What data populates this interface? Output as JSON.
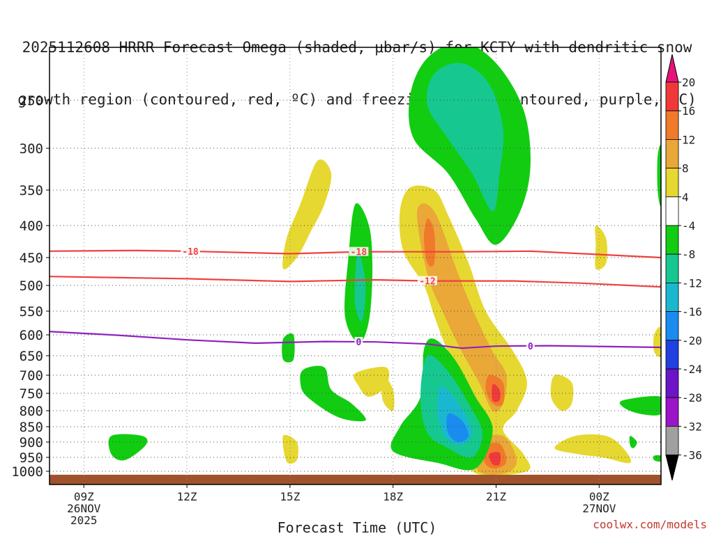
{
  "title": {
    "line1": "2025112608 HRRR Forecast Omega (shaded, μbar/s) for KCTY with dendritic snow",
    "line2": "growth region (contoured, red, ºC) and freezing level (contoured, purple, ºC)"
  },
  "credit": "coolwx.com/models",
  "chart_data": {
    "type": "heatmap",
    "title": "2025112608 HRRR Forecast Omega (shaded, μbar/s) for KCTY with dendritic snow growth region (contoured, red, ºC) and freezing level (contoured, purple, ºC)",
    "xlabel": "Forecast Time (UTC)",
    "ylabel": "",
    "x_range_hours": [
      8,
      25.8
    ],
    "y_range_hPa": [
      1030,
      200
    ],
    "y_ticks": [
      "250",
      "300",
      "350",
      "400",
      "450",
      "500",
      "550",
      "600",
      "650",
      "700",
      "750",
      "800",
      "850",
      "900",
      "950",
      "1000"
    ],
    "x_ticks": [
      {
        "t": 9,
        "label": "09Z",
        "date1": "26NOV",
        "date2": "2025"
      },
      {
        "t": 12,
        "label": "12Z",
        "date1": "",
        "date2": ""
      },
      {
        "t": 15,
        "label": "15Z",
        "date1": "",
        "date2": ""
      },
      {
        "t": 18,
        "label": "18Z",
        "date1": "",
        "date2": ""
      },
      {
        "t": 21,
        "label": "21Z",
        "date1": "",
        "date2": ""
      },
      {
        "t": 24,
        "label": "00Z",
        "date1": "27NOV",
        "date2": ""
      }
    ],
    "colorbar": {
      "labels": [
        "20",
        "16",
        "12",
        "8",
        "4",
        "-4",
        "-8",
        "-12",
        "-16",
        "-20",
        "-24",
        "-28",
        "-32",
        "-36"
      ],
      "colors": [
        "#e8127a",
        "#f0383a",
        "#f07a2a",
        "#eaa838",
        "#e6d830",
        "#ffffff",
        "#12cc12",
        "#16c890",
        "#1ab8d0",
        "#1a8cf0",
        "#2040e0",
        "#6b14c8",
        "#9c14c8",
        "#a0a0a0",
        "#000000"
      ]
    },
    "contours": [
      {
        "name": "-18",
        "color": "#f04040",
        "label": "-18",
        "points": [
          [
            8.0,
            440
          ],
          [
            10.5,
            439
          ],
          [
            12.0,
            440
          ],
          [
            15.0,
            444
          ],
          [
            17.0,
            441
          ],
          [
            20.0,
            441
          ],
          [
            22.0,
            440
          ],
          [
            25.8,
            450
          ]
        ]
      },
      {
        "name": "-12",
        "color": "#f04040",
        "label": "-12",
        "points": [
          [
            8.0,
            484
          ],
          [
            12.0,
            488
          ],
          [
            15.0,
            493
          ],
          [
            17.5,
            490
          ],
          [
            19.0,
            492
          ],
          [
            21.5,
            492
          ],
          [
            23.5,
            496
          ],
          [
            25.8,
            503
          ]
        ]
      },
      {
        "name": "0",
        "color": "#9020c0",
        "label": "0",
        "points": [
          [
            8.0,
            593
          ],
          [
            10.0,
            601
          ],
          [
            12.0,
            612
          ],
          [
            14.0,
            620
          ],
          [
            16.0,
            616
          ],
          [
            17.5,
            617
          ],
          [
            19.0,
            622
          ],
          [
            20.0,
            632
          ],
          [
            21.0,
            627
          ],
          [
            22.5,
            626
          ],
          [
            25.8,
            630
          ]
        ]
      }
    ],
    "omega_regions": [
      {
        "value": -4,
        "points": [
          [
            19.0,
            210
          ],
          [
            20.0,
            195
          ],
          [
            21.0,
            215
          ],
          [
            21.8,
            260
          ],
          [
            22.0,
            320
          ],
          [
            21.7,
            380
          ],
          [
            21.0,
            430
          ],
          [
            20.4,
            390
          ],
          [
            19.6,
            330
          ],
          [
            18.6,
            290
          ],
          [
            18.5,
            245
          ]
        ]
      },
      {
        "value": -8,
        "points": [
          [
            19.2,
            225
          ],
          [
            20.0,
            215
          ],
          [
            20.8,
            235
          ],
          [
            21.2,
            280
          ],
          [
            21.1,
            330
          ],
          [
            20.9,
            380
          ],
          [
            20.3,
            330
          ],
          [
            19.6,
            290
          ],
          [
            19.0,
            255
          ]
        ]
      },
      {
        "value": 4,
        "points": [
          [
            15.8,
            315
          ],
          [
            16.2,
            330
          ],
          [
            16.0,
            370
          ],
          [
            15.6,
            410
          ],
          [
            15.2,
            450
          ],
          [
            14.8,
            470
          ],
          [
            14.9,
            420
          ],
          [
            15.3,
            370
          ]
        ]
      },
      {
        "value": -4,
        "points": [
          [
            16.9,
            370
          ],
          [
            17.3,
            400
          ],
          [
            17.4,
            470
          ],
          [
            17.3,
            570
          ],
          [
            17.0,
            620
          ],
          [
            16.6,
            560
          ],
          [
            16.7,
            450
          ]
        ]
      },
      {
        "value": -8,
        "points": [
          [
            17.0,
            440
          ],
          [
            17.2,
            500
          ],
          [
            17.1,
            570
          ],
          [
            16.9,
            540
          ],
          [
            16.9,
            480
          ]
        ]
      },
      {
        "value": 4,
        "points": [
          [
            18.5,
            347
          ],
          [
            19.2,
            350
          ],
          [
            19.6,
            385
          ],
          [
            20.2,
            460
          ],
          [
            20.7,
            550
          ],
          [
            21.5,
            640
          ],
          [
            21.9,
            720
          ],
          [
            21.6,
            800
          ],
          [
            21.2,
            860
          ],
          [
            21.8,
            940
          ],
          [
            21.9,
            1000
          ],
          [
            20.5,
            1010
          ],
          [
            20.2,
            950
          ],
          [
            20.8,
            880
          ],
          [
            20.3,
            790
          ],
          [
            20.1,
            720
          ],
          [
            19.6,
            640
          ],
          [
            19.2,
            560
          ],
          [
            18.9,
            500
          ],
          [
            18.3,
            440
          ],
          [
            18.2,
            380
          ]
        ]
      },
      {
        "value": 8,
        "points": [
          [
            18.7,
            380
          ],
          [
            19.2,
            380
          ],
          [
            19.9,
            480
          ],
          [
            20.4,
            560
          ],
          [
            20.9,
            640
          ],
          [
            21.3,
            700
          ],
          [
            21.2,
            780
          ],
          [
            20.9,
            800
          ],
          [
            20.5,
            720
          ],
          [
            20.0,
            640
          ],
          [
            19.5,
            560
          ],
          [
            19.0,
            480
          ]
        ]
      },
      {
        "value": 12,
        "points": [
          [
            19.0,
            390
          ],
          [
            19.2,
            410
          ],
          [
            19.2,
            460
          ],
          [
            19.0,
            460
          ],
          [
            18.9,
            420
          ]
        ]
      },
      {
        "value": 12,
        "points": [
          [
            20.8,
            700
          ],
          [
            21.2,
            720
          ],
          [
            21.2,
            780
          ],
          [
            20.9,
            780
          ],
          [
            20.7,
            740
          ]
        ]
      },
      {
        "value": 16,
        "points": [
          [
            20.9,
            725
          ],
          [
            21.1,
            740
          ],
          [
            21.1,
            770
          ],
          [
            20.9,
            770
          ]
        ]
      },
      {
        "value": 8,
        "points": [
          [
            20.4,
            900
          ],
          [
            21.2,
            880
          ],
          [
            21.6,
            960
          ],
          [
            21.3,
            1005
          ],
          [
            20.5,
            1000
          ]
        ]
      },
      {
        "value": 12,
        "points": [
          [
            20.6,
            920
          ],
          [
            21.1,
            905
          ],
          [
            21.3,
            965
          ],
          [
            21.0,
            990
          ],
          [
            20.7,
            975
          ]
        ]
      },
      {
        "value": 16,
        "points": [
          [
            20.8,
            940
          ],
          [
            21.1,
            935
          ],
          [
            21.1,
            975
          ],
          [
            20.9,
            975
          ]
        ]
      },
      {
        "value": -4,
        "points": [
          [
            18.9,
            635
          ],
          [
            19.2,
            610
          ],
          [
            19.8,
            660
          ],
          [
            20.4,
            760
          ],
          [
            20.9,
            860
          ],
          [
            20.4,
            990
          ],
          [
            19.3,
            970
          ],
          [
            18.0,
            930
          ],
          [
            18.2,
            850
          ],
          [
            18.8,
            760
          ]
        ]
      },
      {
        "value": -8,
        "points": [
          [
            19.0,
            650
          ],
          [
            19.6,
            690
          ],
          [
            20.2,
            780
          ],
          [
            20.6,
            870
          ],
          [
            20.3,
            950
          ],
          [
            19.6,
            920
          ],
          [
            19.0,
            870
          ],
          [
            18.8,
            760
          ]
        ]
      },
      {
        "value": -12,
        "points": [
          [
            19.4,
            730
          ],
          [
            19.9,
            780
          ],
          [
            20.3,
            860
          ],
          [
            20.0,
            910
          ],
          [
            19.5,
            880
          ],
          [
            19.3,
            800
          ]
        ]
      },
      {
        "value": -16,
        "points": [
          [
            19.6,
            810
          ],
          [
            20.0,
            830
          ],
          [
            20.2,
            880
          ],
          [
            19.9,
            900
          ],
          [
            19.6,
            870
          ]
        ]
      },
      {
        "value": -4,
        "points": [
          [
            14.8,
            610
          ],
          [
            15.1,
            600
          ],
          [
            15.1,
            660
          ],
          [
            14.8,
            660
          ]
        ]
      },
      {
        "value": -4,
        "points": [
          [
            15.4,
            685
          ],
          [
            16.0,
            680
          ],
          [
            16.2,
            740
          ],
          [
            16.8,
            780
          ],
          [
            17.2,
            830
          ],
          [
            16.4,
            820
          ],
          [
            15.5,
            760
          ],
          [
            15.3,
            720
          ]
        ]
      },
      {
        "value": 4,
        "points": [
          [
            16.9,
            695
          ],
          [
            17.8,
            680
          ],
          [
            17.8,
            730
          ],
          [
            17.3,
            760
          ],
          [
            17.0,
            730
          ]
        ]
      },
      {
        "value": 4,
        "points": [
          [
            17.7,
            700
          ],
          [
            18.0,
            740
          ],
          [
            18.0,
            800
          ],
          [
            17.7,
            770
          ]
        ]
      },
      {
        "value": -4,
        "points": [
          [
            9.8,
            880
          ],
          [
            10.7,
            880
          ],
          [
            10.8,
            910
          ],
          [
            10.2,
            960
          ],
          [
            9.8,
            940
          ]
        ]
      },
      {
        "value": 4,
        "points": [
          [
            14.8,
            880
          ],
          [
            15.2,
            900
          ],
          [
            15.2,
            960
          ],
          [
            14.9,
            965
          ]
        ]
      },
      {
        "value": 4,
        "points": [
          [
            22.7,
            700
          ],
          [
            23.2,
            720
          ],
          [
            23.2,
            780
          ],
          [
            22.9,
            800
          ],
          [
            22.6,
            760
          ]
        ]
      },
      {
        "value": 4,
        "points": [
          [
            23.3,
            880
          ],
          [
            24.2,
            880
          ],
          [
            24.7,
            920
          ],
          [
            24.9,
            970
          ],
          [
            24.1,
            950
          ],
          [
            23.4,
            940
          ],
          [
            22.7,
            920
          ]
        ]
      },
      {
        "value": -4,
        "points": [
          [
            24.7,
            770
          ],
          [
            25.8,
            760
          ],
          [
            25.8,
            810
          ],
          [
            25.2,
            810
          ],
          [
            24.7,
            790
          ]
        ]
      },
      {
        "value": -4,
        "points": [
          [
            24.9,
            880
          ],
          [
            25.1,
            900
          ],
          [
            25.0,
            920
          ],
          [
            24.9,
            910
          ]
        ]
      },
      {
        "value": -4,
        "points": [
          [
            25.6,
            945
          ],
          [
            25.8,
            945
          ],
          [
            25.8,
            965
          ],
          [
            25.6,
            960
          ]
        ]
      },
      {
        "value": 4,
        "points": [
          [
            25.6,
            600
          ],
          [
            25.8,
            585
          ],
          [
            25.8,
            650
          ],
          [
            25.6,
            640
          ]
        ]
      },
      {
        "value": -4,
        "points": [
          [
            25.7,
            310
          ],
          [
            25.8,
            300
          ],
          [
            25.8,
            370
          ],
          [
            25.7,
            350
          ]
        ]
      },
      {
        "value": 4,
        "points": [
          [
            23.9,
            400
          ],
          [
            24.2,
            420
          ],
          [
            24.2,
            460
          ],
          [
            23.9,
            470
          ],
          [
            23.9,
            430
          ]
        ]
      }
    ]
  }
}
